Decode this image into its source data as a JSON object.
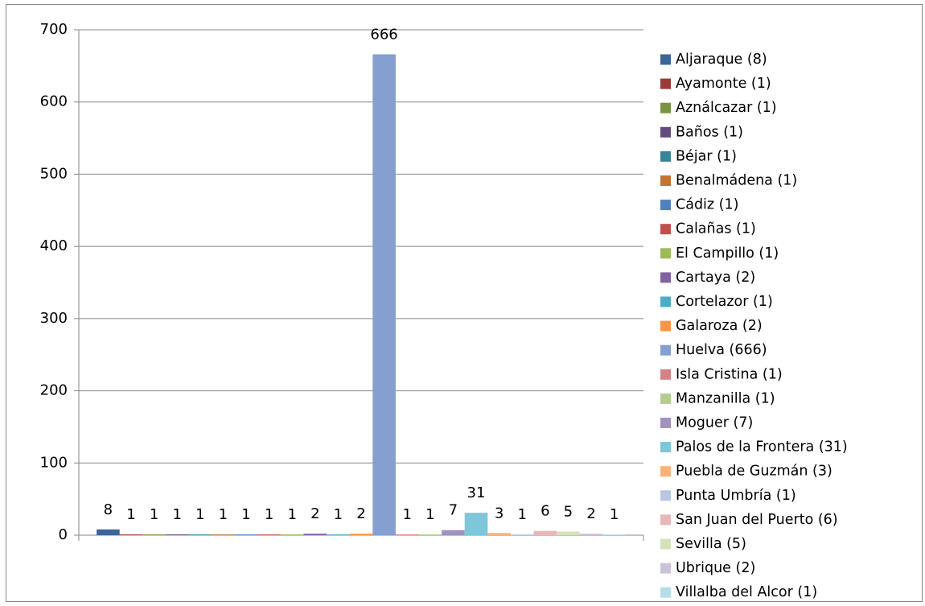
{
  "chart_data": {
    "type": "bar",
    "categories": [
      null
    ],
    "ylim": [
      0,
      700
    ],
    "yticks": [
      0,
      100,
      200,
      300,
      400,
      500,
      600,
      700
    ],
    "grid": true,
    "legend": "right",
    "data_labels": true,
    "series": [
      {
        "name": "Aljaraque (8)",
        "color": "#3d6596",
        "values": [
          8
        ]
      },
      {
        "name": "Ayamonte (1)",
        "color": "#983b39",
        "values": [
          1
        ]
      },
      {
        "name": "Aználcazar (1)",
        "color": "#789440",
        "values": [
          1
        ]
      },
      {
        "name": "Baños (1)",
        "color": "#624c7c",
        "values": [
          1
        ]
      },
      {
        "name": "Béjar (1)",
        "color": "#378596",
        "values": [
          1
        ]
      },
      {
        "name": "Benalmádena (1)",
        "color": "#c27433",
        "values": [
          1
        ]
      },
      {
        "name": "Cádiz (1)",
        "color": "#4f81bd",
        "values": [
          1
        ]
      },
      {
        "name": "Calañas (1)",
        "color": "#c0504d",
        "values": [
          1
        ]
      },
      {
        "name": "El Campillo (1)",
        "color": "#9bbb59",
        "values": [
          1
        ]
      },
      {
        "name": "Cartaya (2)",
        "color": "#8064a2",
        "values": [
          2
        ]
      },
      {
        "name": "Cortelazor (1)",
        "color": "#4bacc6",
        "values": [
          1
        ]
      },
      {
        "name": "Galaroza (2)",
        "color": "#f79646",
        "values": [
          2
        ]
      },
      {
        "name": "Huelva (666)",
        "color": "#849fd0",
        "values": [
          666
        ]
      },
      {
        "name": "Isla Cristina (1)",
        "color": "#d28382",
        "values": [
          1
        ]
      },
      {
        "name": "Manzanilla (1)",
        "color": "#b5cc8e",
        "values": [
          1
        ]
      },
      {
        "name": "Moguer (7)",
        "color": "#a193bd",
        "values": [
          7
        ]
      },
      {
        "name": "Palos de la Frontera (31)",
        "color": "#7ec6d9",
        "values": [
          31
        ]
      },
      {
        "name": "Puebla de Guzmán (3)",
        "color": "#f9b27b",
        "values": [
          3
        ]
      },
      {
        "name": "Punta Umbría (1)",
        "color": "#b9c7e2",
        "values": [
          1
        ]
      },
      {
        "name": "San Juan del Puerto (6)",
        "color": "#e6b9b8",
        "values": [
          6
        ]
      },
      {
        "name": "Sevilla (5)",
        "color": "#d4e2bb",
        "values": [
          5
        ]
      },
      {
        "name": "Ubrique (2)",
        "color": "#cbc1da",
        "values": [
          2
        ]
      },
      {
        "name": "Villalba del Alcor (1)",
        "color": "#b7dde8",
        "values": [
          1
        ]
      }
    ]
  }
}
